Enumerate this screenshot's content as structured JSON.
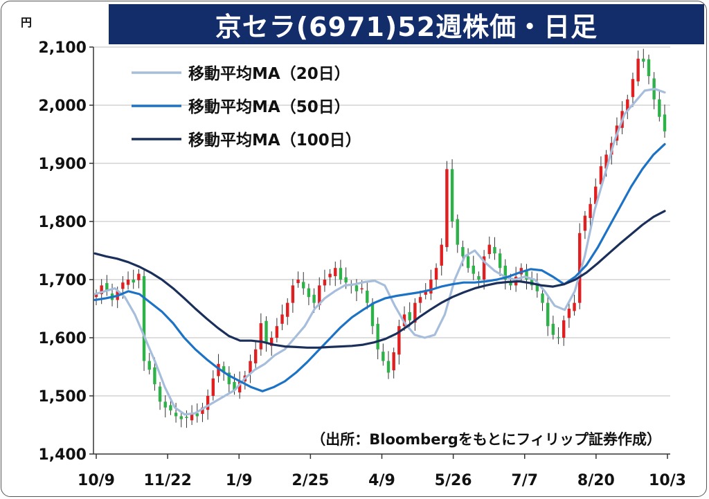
{
  "title": "京セラ(6971)52週株価・日足",
  "unit_label": "円",
  "source_note": "（出所：Bloombergをもとにフィリップ証券作成）",
  "colors": {
    "title_bg": "#132d6b",
    "up": "#e02020",
    "down": "#2fb14a",
    "ma20": "#a6bddc",
    "ma50": "#1c72c4",
    "ma100": "#1a2f5a",
    "grid": "#bdbdbd"
  },
  "chart_data": {
    "type": "line",
    "title": "京セラ(6971)52週株価・日足",
    "ylabel": "円",
    "ylim": [
      1400,
      2100
    ],
    "yticks": [
      "1,400",
      "1,500",
      "1,600",
      "1,700",
      "1,800",
      "1,900",
      "2,000",
      "2,100"
    ],
    "xticks": [
      "10/9",
      "11/22",
      "1/9",
      "2/25",
      "4/9",
      "5/26",
      "7/7",
      "8/20",
      "10/3"
    ],
    "grid": true,
    "legend_position": "top-left",
    "series": [
      {
        "name": "移動平均MA（20日）",
        "color": "#a6bddc",
        "values": [
          1675,
          1680,
          1685,
          1670,
          1640,
          1600,
          1560,
          1515,
          1480,
          1468,
          1470,
          1480,
          1490,
          1500,
          1510,
          1530,
          1545,
          1555,
          1570,
          1580,
          1600,
          1620,
          1650,
          1668,
          1680,
          1690,
          1692,
          1696,
          1698,
          1690,
          1655,
          1625,
          1605,
          1600,
          1605,
          1640,
          1700,
          1740,
          1750,
          1730,
          1715,
          1705,
          1700,
          1705,
          1700,
          1680,
          1655,
          1648,
          1680,
          1740,
          1820,
          1880,
          1940,
          1985,
          2005,
          2025,
          2028,
          2022
        ]
      },
      {
        "name": "移動平均MA（50日）",
        "color": "#1c72c4",
        "values": [
          1665,
          1668,
          1672,
          1680,
          1675,
          1660,
          1645,
          1625,
          1600,
          1580,
          1563,
          1548,
          1535,
          1525,
          1515,
          1508,
          1515,
          1525,
          1540,
          1558,
          1578,
          1598,
          1618,
          1635,
          1648,
          1660,
          1668,
          1672,
          1675,
          1678,
          1682,
          1688,
          1692,
          1695,
          1695,
          1697,
          1700,
          1705,
          1712,
          1718,
          1716,
          1705,
          1692,
          1705,
          1725,
          1755,
          1790,
          1825,
          1860,
          1890,
          1915,
          1933
        ]
      },
      {
        "name": "移動平均MA（100日）",
        "color": "#1a2f5a",
        "values": [
          1745,
          1740,
          1736,
          1730,
          1722,
          1712,
          1700,
          1685,
          1668,
          1650,
          1633,
          1617,
          1603,
          1595,
          1595,
          1593,
          1588,
          1585,
          1584,
          1583,
          1583,
          1584,
          1585,
          1586,
          1588,
          1592,
          1598,
          1607,
          1620,
          1635,
          1648,
          1660,
          1670,
          1678,
          1685,
          1690,
          1694,
          1696,
          1697,
          1694,
          1690,
          1688,
          1692,
          1700,
          1712,
          1728,
          1745,
          1762,
          1778,
          1794,
          1808,
          1818
        ]
      }
    ],
    "daily_close": [
      1675,
      1690,
      1680,
      1665,
      1680,
      1695,
      1700,
      1695,
      1710,
      1560,
      1545,
      1520,
      1490,
      1480,
      1475,
      1465,
      1460,
      1462,
      1470,
      1465,
      1480,
      1500,
      1530,
      1555,
      1540,
      1520,
      1510,
      1525,
      1535,
      1560,
      1580,
      1625,
      1590,
      1600,
      1620,
      1640,
      1660,
      1690,
      1700,
      1685,
      1670,
      1660,
      1690,
      1700,
      1710,
      1720,
      1700,
      1695,
      1690,
      1680,
      1685,
      1660,
      1620,
      1580,
      1560,
      1540,
      1575,
      1620,
      1640,
      1630,
      1660,
      1670,
      1680,
      1700,
      1720,
      1760,
      1890,
      1800,
      1760,
      1740,
      1720,
      1710,
      1700,
      1740,
      1760,
      1745,
      1720,
      1700,
      1690,
      1705,
      1720,
      1700,
      1690,
      1680,
      1660,
      1620,
      1605,
      1600,
      1630,
      1650,
      1660,
      1780,
      1810,
      1830,
      1860,
      1895,
      1915,
      1935,
      1965,
      1990,
      2010,
      2045,
      2080,
      2075,
      2050,
      2010,
      1980,
      1955
    ]
  }
}
